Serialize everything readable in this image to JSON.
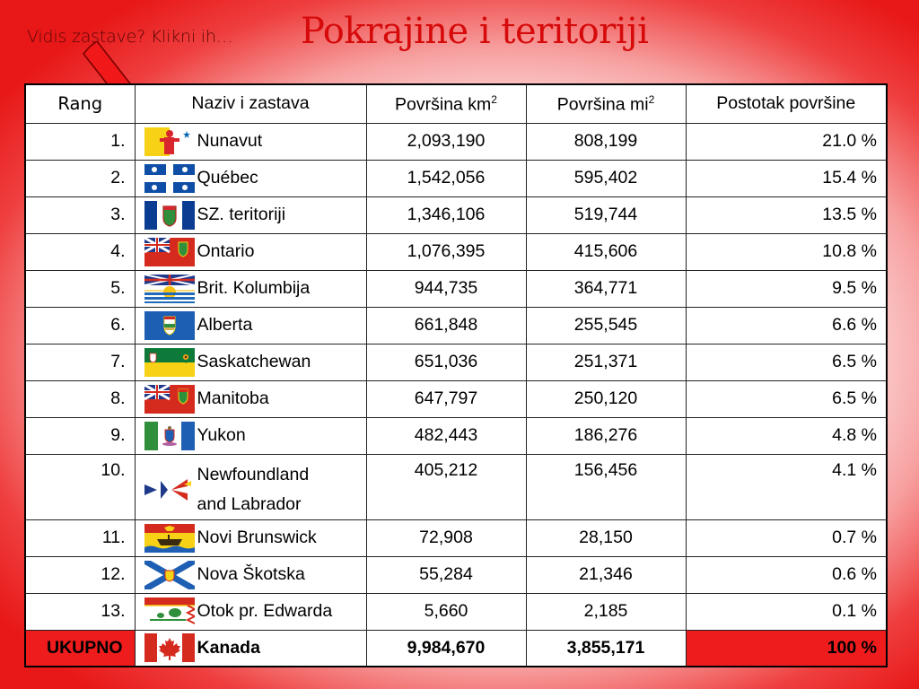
{
  "hint": "Vidis zastave? Klikni ih…",
  "title": "Pokrajine i teritoriji",
  "headers": {
    "rank": "Rang",
    "name": "Naziv i zastava",
    "area_km": "Površina km",
    "area_km_sup": "2",
    "area_mi": "Površina mi",
    "area_mi_sup": "2",
    "percent": "Postotak površine"
  },
  "rows": [
    {
      "rank": "1.",
      "name": "Nunavut",
      "km": "2,093,190",
      "mi": "808,199",
      "pct": "21.0 %",
      "flag_icon": "nunavut-flag-icon"
    },
    {
      "rank": "2.",
      "name": "Québec",
      "km": "1,542,056",
      "mi": "595,402",
      "pct": "15.4 %",
      "flag_icon": "quebec-flag-icon"
    },
    {
      "rank": "3.",
      "name": "SZ. teritoriji",
      "km": "1,346,106",
      "mi": "519,744",
      "pct": "13.5 %",
      "flag_icon": "nwt-flag-icon"
    },
    {
      "rank": "4.",
      "name": "Ontario",
      "km": "1,076,395",
      "mi": "415,606",
      "pct": "10.8 %",
      "flag_icon": "ontario-flag-icon"
    },
    {
      "rank": "5.",
      "name": "Brit. Kolumbija",
      "km": "944,735",
      "mi": "364,771",
      "pct": "9.5 %",
      "flag_icon": "bc-flag-icon"
    },
    {
      "rank": "6.",
      "name": "Alberta",
      "km": "661,848",
      "mi": "255,545",
      "pct": "6.6 %",
      "flag_icon": "alberta-flag-icon"
    },
    {
      "rank": "7.",
      "name": "Saskatchewan",
      "km": "651,036",
      "mi": "251,371",
      "pct": "6.5 %",
      "flag_icon": "saskatchewan-flag-icon"
    },
    {
      "rank": "8.",
      "name": "Manitoba",
      "km": "647,797",
      "mi": "250,120",
      "pct": "6.5 %",
      "flag_icon": "manitoba-flag-icon"
    },
    {
      "rank": "9.",
      "name": "Yukon",
      "km": "482,443",
      "mi": "186,276",
      "pct": "4.8 %",
      "flag_icon": "yukon-flag-icon"
    },
    {
      "rank": "10.",
      "name_line1": "Newfoundland",
      "name_line2": "and Labrador",
      "km": "405,212",
      "mi": "156,456",
      "pct": "4.1 %",
      "flag_icon": "newfoundland-flag-icon"
    },
    {
      "rank": "11.",
      "name": "Novi Brunswick",
      "km": "72,908",
      "mi": "28,150",
      "pct": "0.7 %",
      "flag_icon": "new-brunswick-flag-icon"
    },
    {
      "rank": "12.",
      "name": "Nova Škotska",
      "km": "55,284",
      "mi": "21,346",
      "pct": "0.6 %",
      "flag_icon": "nova-scotia-flag-icon"
    },
    {
      "rank": "13.",
      "name": "Otok pr. Edwarda",
      "km": "5,660",
      "mi": "2,185",
      "pct": "0.1 %",
      "flag_icon": "pei-flag-icon"
    }
  ],
  "total": {
    "rank": "UKUPNO",
    "name": "Kanada",
    "km": "9,984,670",
    "mi": "3,855,171",
    "pct": "100 %",
    "flag_icon": "canada-flag-icon"
  },
  "colors": {
    "accent_red": "#ee1c1c",
    "title_red": "#d60a0a",
    "hint_text": "#5a0707"
  },
  "icons": {
    "arrow": "red-pointer-arrow-icon"
  }
}
